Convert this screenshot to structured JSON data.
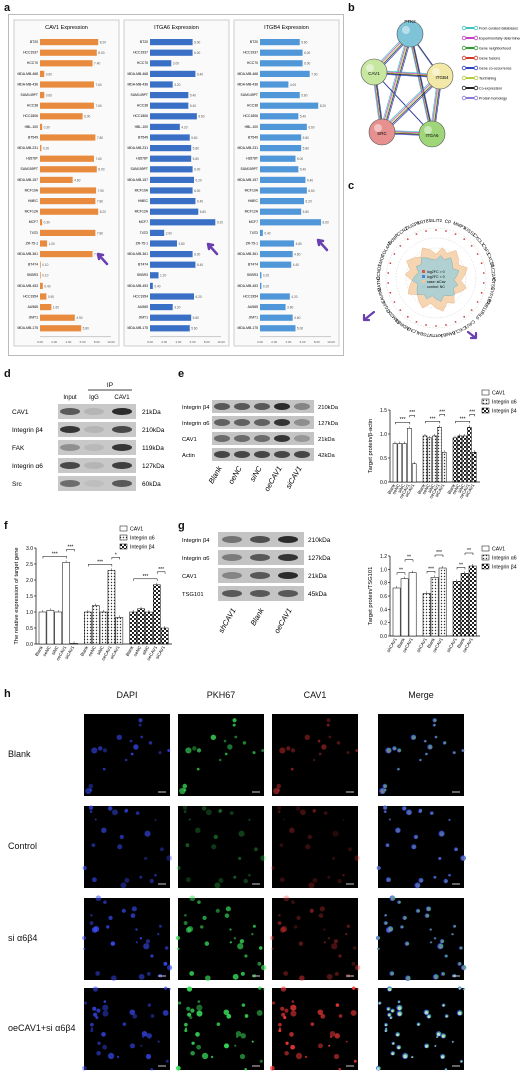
{
  "panels": {
    "a": {
      "label": "a",
      "titles": [
        "CAV1 Expression",
        "ITGA6 Expression",
        "ITGB4 Expression"
      ],
      "rows": [
        "BT20",
        "HCC1937",
        "HCC70",
        "MDA-MB-468",
        "MDA-MB-436",
        "SUM149PT",
        "HCC38",
        "HCC1806",
        "HBL-100",
        "BT549",
        "MDA-MB-231",
        "Hs578T",
        "SUM159PT",
        "MDA-MB-157",
        "MCF10A",
        "HMEC",
        "MCF12A",
        "MCF7",
        "T47D",
        "ZR-75-1",
        "MDA-MB-361",
        "BT474",
        "SKBR3",
        "MDA-MB-453",
        "HCC1954",
        "AU565",
        "JIMT1",
        "MDA-MB-175"
      ],
      "axis_ticks": [
        "0.00",
        "2.00",
        "4.00",
        "6.00",
        "8.00",
        "10.00"
      ]
    },
    "b": {
      "label": "b",
      "nodes": [
        "PTK2",
        "CAV1",
        "ITGB4",
        "ITGA6",
        "SRC"
      ],
      "legend": [
        "From curated databases",
        "Experimentally determined",
        "Gene neighborhood",
        "Gene fusions",
        "Gene co-occurrence",
        "Textmining",
        "Co-expression",
        "Protein homology"
      ],
      "legend_colors": [
        "#3ec4c4",
        "#c33fc3",
        "#2e9e2e",
        "#d43a2a",
        "#3040c8",
        "#b6cb3a",
        "#222222",
        "#8a7ad8"
      ]
    },
    "c": {
      "label": "c",
      "genes": [
        "SLIT2",
        "CP",
        "MMP1",
        "KISS1",
        "CXCL1",
        "CSF3",
        "CXCL3",
        "SLC22A6",
        "CTSS",
        "CYP1B1",
        "RAB11B",
        "IL6",
        "CAV1",
        "CXCL8",
        "LAMB3",
        "KRT5",
        "ITGB4",
        "LCN2",
        "NDRG1",
        "FAM20C",
        "ITGA6",
        "CAVIN2",
        "MATN2",
        "CCND2",
        "LMO7",
        "COL4A5",
        "TXNIP",
        "CCN2",
        "DUSP1",
        "KRT81"
      ],
      "legend": [
        "log2FC > 0",
        "log2FC < 0",
        "case: siCav",
        "control: NC"
      ]
    },
    "d": {
      "label": "d",
      "header_group": "IP",
      "columns": [
        "Input",
        "IgG",
        "CAV1"
      ],
      "rows": [
        "CAV1",
        "Integrin β4",
        "FAK",
        "Integrin α6",
        "Src"
      ],
      "sizes": [
        "21kDa",
        "210kDa",
        "119kDa",
        "127kDa",
        "60kDa"
      ]
    },
    "e": {
      "label": "e",
      "rows": [
        "Integrin β4",
        "Integrin α6",
        "CAV1",
        "Actin"
      ],
      "sizes": [
        "210kDa",
        "127kDa",
        "21kDa",
        "42kDa"
      ],
      "lanes": [
        "Blank",
        "oeNC",
        "siNC",
        "oeCAV1",
        "siCAV1"
      ],
      "ylabel": "Target protein/β-actin",
      "legend": [
        "CAV1",
        "Integrin α6",
        "Integrin β4"
      ],
      "sig": [
        "***",
        "***",
        "***",
        "***",
        "***",
        "***"
      ],
      "yticks": [
        "0.0",
        "0.5",
        "1.0",
        "1.5"
      ]
    },
    "f": {
      "label": "f",
      "ylabel": "The relative expression of target gene",
      "legend": [
        "CAV1",
        "Integrin α6",
        "Integrin β4"
      ],
      "lanes": [
        "Blank",
        "oeNC",
        "siNC",
        "oeCAV1",
        "siCAV1"
      ],
      "sig": [
        "***",
        "***",
        "***",
        "*",
        "***",
        "***",
        "***",
        "***"
      ],
      "yticks": [
        "0.0",
        "0.5",
        "1.0",
        "1.5",
        "2.0",
        "2.5",
        "3.0"
      ]
    },
    "g": {
      "label": "g",
      "rows": [
        "Integrin β4",
        "Integrin α6",
        "CAV1",
        "TSG101"
      ],
      "sizes": [
        "210kDa",
        "127kDa",
        "21kDa",
        "45kDa"
      ],
      "lanes": [
        "shCAV1",
        "Blank",
        "oeCAV1"
      ],
      "ylabel": "Target protein/TSG101",
      "legend": [
        "CAV1",
        "Integrin α6",
        "Integrin β4"
      ],
      "sig": [
        "**",
        "**",
        "***",
        "***",
        "**",
        "**"
      ],
      "yticks": [
        "0.0",
        "0.2",
        "0.4",
        "0.6",
        "0.8",
        "1.0",
        "1.2"
      ]
    },
    "h": {
      "label": "h",
      "columns": [
        "DAPI",
        "PKH67",
        "CAV1",
        "Merge"
      ],
      "rows": [
        "Blank",
        "Control",
        "si α6β4",
        "oeCAV1+si α6β4"
      ]
    }
  },
  "chart_data": [
    {
      "type": "bar",
      "panel": "e",
      "categories": [
        "Blank",
        "oeNC",
        "siNC",
        "oeCAV1",
        "siCAV1"
      ],
      "series": [
        {
          "name": "CAV1",
          "values": [
            0.8,
            0.8,
            0.8,
            1.12,
            0.38
          ]
        },
        {
          "name": "Integrin α6",
          "values": [
            0.96,
            0.92,
            0.96,
            1.14,
            0.62
          ]
        },
        {
          "name": "Integrin β4",
          "values": [
            0.92,
            0.96,
            0.96,
            1.14,
            0.62
          ]
        }
      ],
      "ylabel": "Target protein/β-actin",
      "ylim": [
        0,
        1.5
      ]
    },
    {
      "type": "bar",
      "panel": "f",
      "categories": [
        "Blank",
        "oeNC",
        "siNC",
        "oeCAV1",
        "siCAV1"
      ],
      "series": [
        {
          "name": "CAV1",
          "values": [
            1.0,
            1.05,
            1.0,
            2.55,
            0.02
          ]
        },
        {
          "name": "Integrin α6",
          "values": [
            1.0,
            1.2,
            1.0,
            2.3,
            0.83
          ]
        },
        {
          "name": "Integrin β4",
          "values": [
            1.0,
            1.1,
            1.0,
            1.85,
            0.5
          ]
        }
      ],
      "ylabel": "The relative expression of target gene",
      "ylim": [
        0,
        3.0
      ]
    },
    {
      "type": "bar",
      "panel": "g",
      "categories": [
        "shCAV1",
        "Blank",
        "oeCAV1"
      ],
      "series": [
        {
          "name": "CAV1",
          "values": [
            0.72,
            0.86,
            0.95
          ]
        },
        {
          "name": "Integrin α6",
          "values": [
            0.64,
            0.88,
            1.02
          ]
        },
        {
          "name": "Integrin β4",
          "values": [
            0.82,
            0.94,
            1.05
          ]
        }
      ],
      "ylabel": "Target protein/TSG101",
      "ylim": [
        0,
        1.2
      ]
    },
    {
      "type": "bar",
      "panel": "a",
      "title": "CAV1 Expression",
      "categories": [
        "BT20",
        "HCC1937",
        "HCC70",
        "MDA-MB-468",
        "MDA-MB-436",
        "SUM149PT",
        "HCC38",
        "HCC1806",
        "HBL-100",
        "BT549",
        "MDA-MB-231",
        "Hs578T",
        "SUM159PT",
        "MDA-MB-157",
        "MCF10A",
        "HMEC",
        "MCF12A",
        "MCF7",
        "T47D",
        "ZR-75-1",
        "MDA-MB-361",
        "BT474",
        "SKBR3",
        "MDA-MB-453",
        "HCC1954",
        "AU565",
        "JIMT1",
        "MDA-MB-175"
      ],
      "values": [
        8.2,
        8.0,
        7.4,
        0.6,
        7.6,
        0.6,
        7.6,
        6.0,
        0.3,
        7.8,
        0.2,
        7.6,
        8.0,
        4.6,
        7.9,
        7.8,
        8.2,
        0.3,
        7.8,
        1.0,
        7.4,
        0.1,
        0.1,
        0.4,
        0.9,
        1.6,
        4.9,
        5.8
      ],
      "ylim": [
        0,
        10
      ]
    },
    {
      "type": "bar",
      "panel": "a",
      "title": "ITGA6 Expression",
      "categories": [
        "BT20",
        "HCC1937",
        "HCC70",
        "MDA-MB-468",
        "MDA-MB-436",
        "SUM149PT",
        "HCC38",
        "HCC1806",
        "HBL-100",
        "BT549",
        "MDA-MB-231",
        "Hs578T",
        "SUM159PT",
        "MDA-MB-157",
        "MCF10A",
        "HMEC",
        "MCF12A",
        "MCF7",
        "T47D",
        "ZR-75-1",
        "MDA-MB-361",
        "BT474",
        "SKBR3",
        "MDA-MB-453",
        "HCC1954",
        "AU565",
        "JIMT1",
        "MDA-MB-175"
      ],
      "values": [
        6.0,
        6.0,
        3.0,
        6.4,
        3.2,
        5.4,
        5.4,
        6.6,
        4.2,
        5.6,
        5.8,
        5.8,
        6.0,
        6.2,
        6.0,
        6.4,
        6.8,
        9.2,
        2.0,
        3.8,
        6.0,
        6.4,
        1.2,
        0.4,
        6.2,
        3.2,
        5.8,
        5.6
      ],
      "ylim": [
        0,
        10
      ]
    },
    {
      "type": "bar",
      "panel": "a",
      "title": "ITGB4 Expression",
      "categories": [
        "BT20",
        "HCC1937",
        "HCC70",
        "MDA-MB-468",
        "MDA-MB-436",
        "SUM149PT",
        "HCC38",
        "HCC1806",
        "HBL-100",
        "BT549",
        "MDA-MB-231",
        "Hs578T",
        "SUM159PT",
        "MDA-MB-157",
        "MCF10A",
        "HMEC",
        "MCF12A",
        "MCF7",
        "T47D",
        "ZR-75-1",
        "MDA-MB-361",
        "BT474",
        "SKBR3",
        "MDA-MB-453",
        "HCC1954",
        "AU565",
        "JIMT1",
        "MDA-MB-175"
      ],
      "values": [
        5.6,
        6.0,
        6.0,
        7.0,
        4.0,
        5.6,
        8.2,
        5.4,
        6.6,
        5.8,
        5.8,
        5.0,
        5.4,
        6.4,
        6.6,
        6.2,
        5.8,
        8.6,
        0.4,
        4.8,
        4.6,
        4.4,
        0.2,
        0.2,
        4.2,
        3.6,
        4.6,
        5.0
      ],
      "ylim": [
        0,
        10
      ]
    }
  ]
}
